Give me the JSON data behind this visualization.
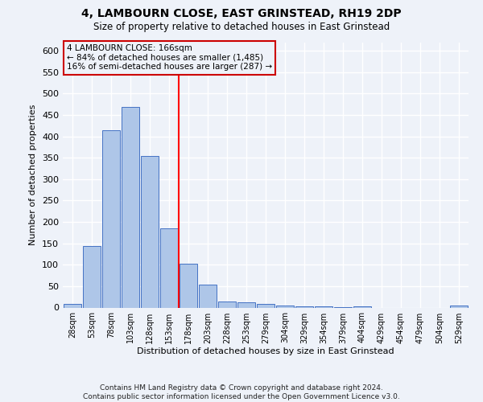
{
  "title": "4, LAMBOURN CLOSE, EAST GRINSTEAD, RH19 2DP",
  "subtitle": "Size of property relative to detached houses in East Grinstead",
  "xlabel": "Distribution of detached houses by size in East Grinstead",
  "ylabel": "Number of detached properties",
  "categories": [
    "28sqm",
    "53sqm",
    "78sqm",
    "103sqm",
    "128sqm",
    "153sqm",
    "178sqm",
    "203sqm",
    "228sqm",
    "253sqm",
    "279sqm",
    "304sqm",
    "329sqm",
    "354sqm",
    "379sqm",
    "404sqm",
    "429sqm",
    "454sqm",
    "479sqm",
    "504sqm",
    "529sqm"
  ],
  "values": [
    8,
    143,
    415,
    468,
    355,
    185,
    103,
    53,
    15,
    13,
    9,
    4,
    2,
    2,
    1,
    3,
    0,
    0,
    0,
    0,
    4
  ],
  "bar_color": "#aec6e8",
  "bar_edge_color": "#4472c4",
  "annotation_line1": "4 LAMBOURN CLOSE: 166sqm",
  "annotation_line2": "← 84% of detached houses are smaller (1,485)",
  "annotation_line3": "16% of semi-detached houses are larger (287) →",
  "annotation_box_color": "#cc0000",
  "ylim": [
    0,
    620
  ],
  "yticks": [
    0,
    50,
    100,
    150,
    200,
    250,
    300,
    350,
    400,
    450,
    500,
    550,
    600
  ],
  "footnote1": "Contains HM Land Registry data © Crown copyright and database right 2024.",
  "footnote2": "Contains public sector information licensed under the Open Government Licence v3.0.",
  "background_color": "#eef2f9",
  "grid_color": "#ffffff",
  "red_line_index": 5.52
}
